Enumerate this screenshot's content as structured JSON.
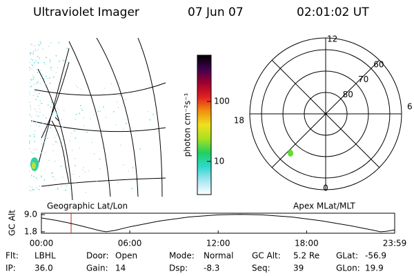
{
  "header": {
    "title": "Ultraviolet Imager",
    "date": "07 Jun 07",
    "time": "02:01:02 UT"
  },
  "map": {
    "label": "Geographic Lat/Lon"
  },
  "colorbar": {
    "label": "photon cm⁻²s⁻¹",
    "scale": "log",
    "lim": [
      2.8,
      590
    ],
    "ticks": [
      10,
      100
    ],
    "colormap": [
      "#ffffff",
      "#a8e6f0",
      "#2ed8d0",
      "#20d060",
      "#a8e020",
      "#f0e020",
      "#f09010",
      "#e02020",
      "#a00030",
      "#400050",
      "#000000"
    ]
  },
  "polar": {
    "label": "Apex MLat/MLT",
    "lat_lim": [
      90,
      54.5
    ],
    "lat_ticks": [
      80,
      70,
      60
    ],
    "mlt_ticks": [
      0,
      6,
      12,
      18
    ]
  },
  "altitude": {
    "type": "line",
    "ylabel": "GC Alt",
    "xlim": [
      0,
      23.98
    ],
    "xticks": [
      {
        "value": 0,
        "label": "00:00"
      },
      {
        "value": 6,
        "label": "06:00"
      },
      {
        "value": 12,
        "label": "12:00"
      },
      {
        "value": 18,
        "label": "18:00"
      },
      {
        "value": 23.98,
        "label": "23:59"
      }
    ],
    "ylim": [
      1.2,
      9.6
    ],
    "yticks": [
      {
        "value": 1.8,
        "label": "1.8"
      },
      {
        "value": 9,
        "label": "9.0"
      }
    ],
    "x": [
      0,
      1,
      2,
      3,
      4,
      4.4,
      5,
      6,
      8,
      10,
      12,
      13.5,
      15,
      17,
      19,
      21,
      22.5,
      23,
      23.4,
      23.98
    ],
    "values": [
      7.6,
      6.6,
      5.3,
      3.8,
      2.2,
      1.8,
      2.4,
      3.9,
      6.3,
      8.0,
      8.9,
      9.1,
      8.9,
      8.0,
      6.4,
      4.3,
      2.5,
      1.8,
      2.0,
      2.6
    ],
    "marker_x": 2.017,
    "color": "#000000",
    "marker_color": "#d02020"
  },
  "footer": {
    "rows": [
      [
        {
          "label": "Flt:",
          "value": "LBHL"
        },
        {
          "label": "Door:",
          "value": "Open"
        },
        {
          "label": "Mode:",
          "value": "Normal"
        },
        {
          "label": "GC Alt:",
          "value": "5.2 Re"
        },
        {
          "label": "GLat:",
          "value": "-56.9"
        }
      ],
      [
        {
          "label": "IP:",
          "value": "36.0"
        },
        {
          "label": "Gain:",
          "value": "14"
        },
        {
          "label": "Dsp:",
          "value": "-8.3"
        },
        {
          "label": "Seq:",
          "value": "39"
        },
        {
          "label": "GLon:",
          "value": "19.9"
        }
      ]
    ]
  }
}
